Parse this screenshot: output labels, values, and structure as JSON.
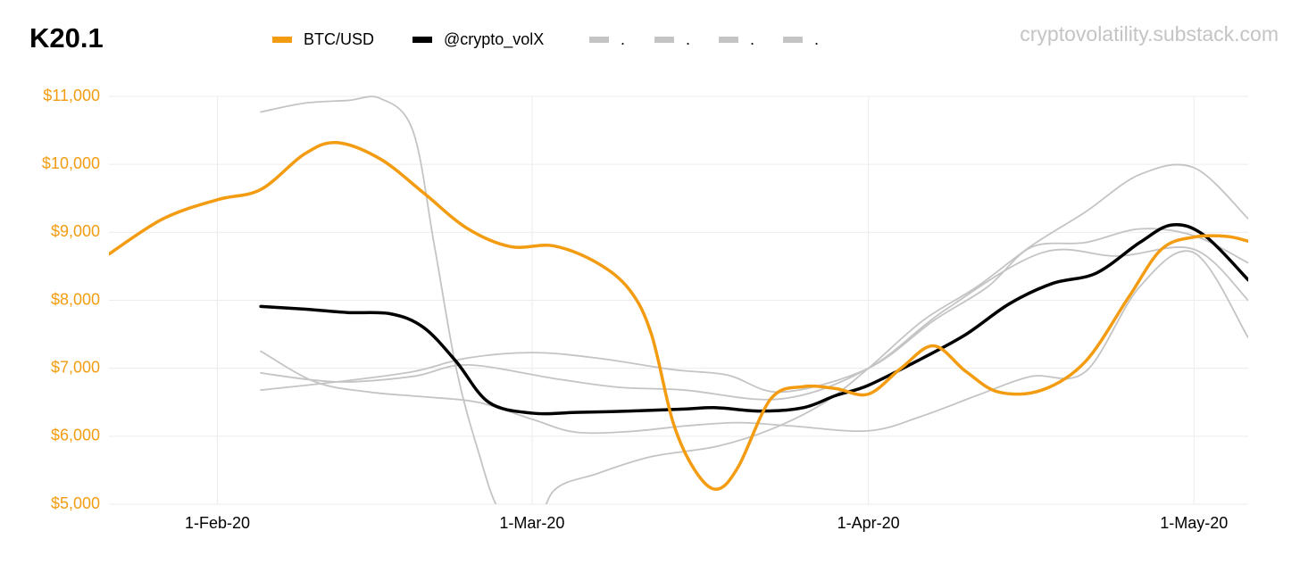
{
  "chart_data": {
    "type": "line",
    "title": "K20.1",
    "source": "cryptovolatility.substack.com",
    "xlim": [
      "2020-01-22",
      "2020-05-06"
    ],
    "xticks": [
      {
        "value": "2020-02-01",
        "label": "1-Feb-20"
      },
      {
        "value": "2020-03-01",
        "label": "1-Mar-20"
      },
      {
        "value": "2020-04-01",
        "label": "1-Apr-20"
      },
      {
        "value": "2020-05-01",
        "label": "1-May-20"
      }
    ],
    "ylim": [
      5000,
      11000
    ],
    "yticks": [
      {
        "value": 5000,
        "label": "$5,000"
      },
      {
        "value": 6000,
        "label": "$6,000"
      },
      {
        "value": 7000,
        "label": "$7,000"
      },
      {
        "value": 8000,
        "label": "$8,000"
      },
      {
        "value": 9000,
        "label": "$9,000"
      },
      {
        "value": 10000,
        "label": "$10,000"
      },
      {
        "value": 11000,
        "label": "$11,000"
      }
    ],
    "grid": true,
    "legend": "top",
    "series": [
      {
        "name": "BTC/USD",
        "color": "#f39c12",
        "width": 3.5,
        "x": [
          "2020-01-22",
          "2020-01-27",
          "2020-02-01",
          "2020-02-05",
          "2020-02-09",
          "2020-02-12",
          "2020-02-16",
          "2020-02-20",
          "2020-02-24",
          "2020-02-28",
          "2020-03-03",
          "2020-03-07",
          "2020-03-10",
          "2020-03-12",
          "2020-03-14",
          "2020-03-16",
          "2020-03-18",
          "2020-03-20",
          "2020-03-23",
          "2020-03-26",
          "2020-03-29",
          "2020-04-01",
          "2020-04-04",
          "2020-04-07",
          "2020-04-10",
          "2020-04-13",
          "2020-04-17",
          "2020-04-21",
          "2020-04-25",
          "2020-04-28",
          "2020-05-01",
          "2020-05-04",
          "2020-05-06"
        ],
        "values": [
          8680,
          9200,
          9480,
          9630,
          10150,
          10320,
          10080,
          9580,
          9060,
          8790,
          8800,
          8550,
          8150,
          7500,
          6200,
          5500,
          5220,
          5550,
          6550,
          6730,
          6700,
          6620,
          7000,
          7330,
          6950,
          6650,
          6680,
          7100,
          8050,
          8750,
          8930,
          8940,
          8870
        ]
      },
      {
        "name": "@crypto_volX",
        "color": "#000000",
        "width": 3.5,
        "x": [
          "2020-02-05",
          "2020-02-09",
          "2020-02-13",
          "2020-02-17",
          "2020-02-20",
          "2020-02-23",
          "2020-02-26",
          "2020-03-01",
          "2020-03-05",
          "2020-03-10",
          "2020-03-15",
          "2020-03-18",
          "2020-03-22",
          "2020-03-26",
          "2020-03-29",
          "2020-04-01",
          "2020-04-06",
          "2020-04-10",
          "2020-04-14",
          "2020-04-18",
          "2020-04-22",
          "2020-04-26",
          "2020-04-29",
          "2020-05-02",
          "2020-05-06"
        ],
        "values": [
          7910,
          7870,
          7820,
          7800,
          7600,
          7100,
          6500,
          6340,
          6350,
          6370,
          6400,
          6420,
          6370,
          6420,
          6600,
          6750,
          7150,
          7500,
          7950,
          8250,
          8400,
          8850,
          9110,
          8950,
          8300
        ]
      },
      {
        "name": ".",
        "color": "#c4c4c4",
        "width": 1.8,
        "x": [
          "2020-02-05",
          "2020-02-09",
          "2020-02-13",
          "2020-02-16",
          "2020-02-19",
          "2020-02-21",
          "2020-02-23",
          "2020-02-25",
          "2020-02-27",
          "2020-03-01",
          "2020-03-03",
          "2020-03-07",
          "2020-03-12",
          "2020-03-18",
          "2020-03-23",
          "2020-03-28",
          "2020-04-01",
          "2020-04-06",
          "2020-04-11",
          "2020-04-16",
          "2020-04-21",
          "2020-04-26",
          "2020-05-01",
          "2020-05-06"
        ],
        "values": [
          10770,
          10900,
          10940,
          10970,
          10500,
          8800,
          7000,
          5800,
          4900,
          4500,
          5200,
          5450,
          5700,
          5850,
          6100,
          6500,
          7000,
          7700,
          8200,
          8800,
          9300,
          9850,
          9950,
          9200
        ]
      },
      {
        "name": ".",
        "color": "#c4c4c4",
        "width": 1.8,
        "x": [
          "2020-02-05",
          "2020-02-10",
          "2020-02-15",
          "2020-02-20",
          "2020-02-25",
          "2020-03-01",
          "2020-03-05",
          "2020-03-10",
          "2020-03-15",
          "2020-03-20",
          "2020-03-25",
          "2020-04-01",
          "2020-04-06",
          "2020-04-11",
          "2020-04-16",
          "2020-04-21",
          "2020-04-26",
          "2020-05-01",
          "2020-05-06"
        ],
        "values": [
          7250,
          6800,
          6650,
          6580,
          6500,
          6250,
          6060,
          6070,
          6150,
          6200,
          6150,
          6080,
          6300,
          6600,
          6880,
          6950,
          8200,
          8700,
          7450
        ]
      },
      {
        "name": ".",
        "color": "#c4c4c4",
        "width": 1.8,
        "x": [
          "2020-02-05",
          "2020-02-12",
          "2020-02-19",
          "2020-02-24",
          "2020-03-01",
          "2020-03-07",
          "2020-03-14",
          "2020-03-19",
          "2020-03-24",
          "2020-04-01",
          "2020-04-07",
          "2020-04-12",
          "2020-04-16",
          "2020-04-21",
          "2020-04-26",
          "2020-05-01",
          "2020-05-06"
        ],
        "values": [
          6680,
          6800,
          6950,
          7150,
          7230,
          7150,
          6980,
          6900,
          6650,
          7000,
          7700,
          8200,
          8780,
          8850,
          9050,
          8950,
          8550
        ]
      },
      {
        "name": ".",
        "color": "#c4c4c4",
        "width": 1.8,
        "x": [
          "2020-02-05",
          "2020-02-12",
          "2020-02-19",
          "2020-02-24",
          "2020-03-03",
          "2020-03-09",
          "2020-03-15",
          "2020-03-24",
          "2020-04-01",
          "2020-04-08",
          "2020-04-17",
          "2020-04-24",
          "2020-05-01",
          "2020-05-06"
        ],
        "values": [
          6930,
          6800,
          6880,
          7050,
          6850,
          6720,
          6680,
          6550,
          7000,
          7850,
          8700,
          8650,
          8750,
          8000
        ]
      }
    ]
  }
}
